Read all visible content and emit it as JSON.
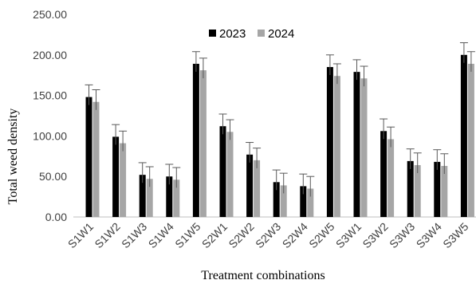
{
  "chart_data": {
    "type": "bar",
    "categories": [
      "S1W1",
      "S1W2",
      "S1W3",
      "S1W4",
      "S1W5",
      "S2W1",
      "S2W2",
      "S2W3",
      "S2W4",
      "S2W5",
      "S3W1",
      "S3W2",
      "S3W3",
      "S3W4",
      "S3W5"
    ],
    "series": [
      {
        "name": "2023",
        "color": "#000000",
        "values": [
          148,
          99,
          52,
          50,
          189,
          112,
          77,
          43,
          38,
          185,
          179,
          106,
          69,
          68,
          200
        ],
        "errors": [
          15,
          15,
          15,
          15,
          15,
          15,
          15,
          15,
          15,
          15,
          15,
          15,
          15,
          15,
          15
        ]
      },
      {
        "name": "2024",
        "color": "#a6a6a6",
        "values": [
          142,
          91,
          47,
          46,
          181,
          105,
          70,
          39,
          35,
          174,
          171,
          96,
          64,
          63,
          189
        ],
        "errors": [
          15,
          15,
          15,
          15,
          15,
          15,
          15,
          15,
          15,
          15,
          15,
          15,
          15,
          15,
          15
        ]
      }
    ],
    "yticks": [
      "0.00",
      "50.00",
      "100.00",
      "150.00",
      "200.00",
      "250.00"
    ],
    "ylim": [
      0,
      250
    ],
    "xlabel": "Treatment combinations",
    "ylabel": "Total weed density",
    "legend_position": "top-center",
    "grid": false
  }
}
